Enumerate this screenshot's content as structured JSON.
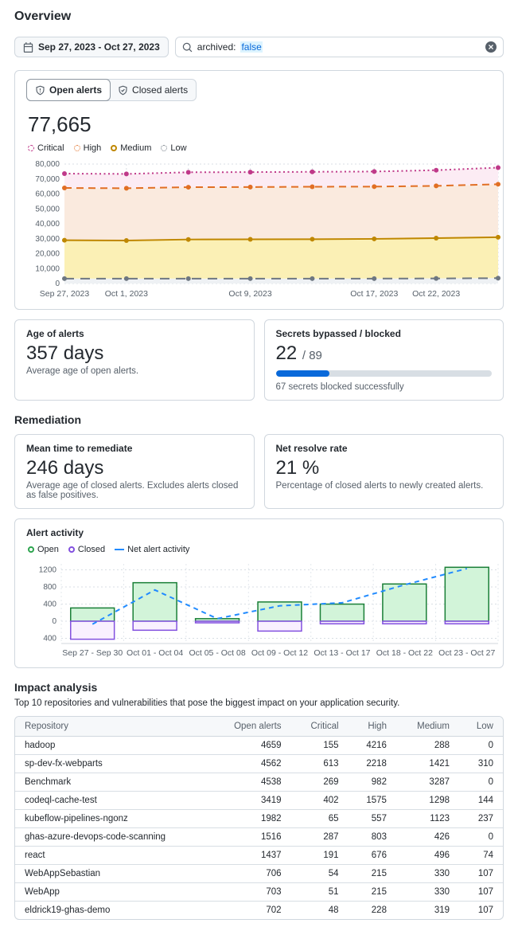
{
  "page": {
    "title": "Overview"
  },
  "colors": {
    "accent_blue": "#0969da",
    "critical": "#bf3989",
    "high": "#e16f24",
    "medium": "#bf8700",
    "low": "#6e7781",
    "open_green": "#2da44e",
    "closed_purple": "#8250df",
    "net_blue": "#218bff"
  },
  "toolbar": {
    "date_range": "Sep 27, 2023 - Oct 27, 2023",
    "search_prefix": "archived:",
    "search_value": "false"
  },
  "open_alerts_card": {
    "tabs": [
      {
        "label": "Open alerts"
      },
      {
        "label": "Closed alerts"
      }
    ],
    "total": "77,665",
    "legend": [
      {
        "label": "Critical",
        "color": "#bf3989"
      },
      {
        "label": "High",
        "color": "#e16f24"
      },
      {
        "label": "Medium",
        "color": "#bf8700"
      },
      {
        "label": "Low",
        "color": "#6e7781"
      }
    ]
  },
  "stat_cards": {
    "age": {
      "title": "Age of alerts",
      "value": "357 days",
      "desc": "Average age of open alerts."
    },
    "secrets": {
      "title": "Secrets bypassed / blocked",
      "value": "22",
      "total": "/ 89",
      "desc": "67 secrets blocked successfully",
      "percent": 24.7
    },
    "mttr": {
      "title": "Mean time to remediate",
      "value": "246 days",
      "desc": "Average age of closed alerts. Excludes alerts closed as false positives."
    },
    "resolve": {
      "title": "Net resolve rate",
      "value": "21 %",
      "desc": "Percentage of closed alerts to newly created alerts."
    }
  },
  "sections": {
    "remediation": "Remediation",
    "impact": "Impact analysis",
    "impact_sub": "Top 10 repositories and vulnerabilities that pose the biggest impact on your application security."
  },
  "activity_card": {
    "title": "Alert activity",
    "legend": [
      {
        "label": "Open"
      },
      {
        "label": "Closed"
      },
      {
        "label": "Net alert activity"
      }
    ]
  },
  "chart_data": [
    {
      "id": "severity-trend",
      "type": "line",
      "title": "Open alerts by severity over time",
      "x": [
        "Sep 27, 2023",
        "Oct 1, 2023",
        "Oct 5, 2023",
        "Oct 9, 2023",
        "Oct 13, 2023",
        "Oct 17, 2023",
        "Oct 22, 2023",
        "Oct 27, 2023"
      ],
      "x_ticks": [
        {
          "i": 0,
          "label": "Sep 27, 2023"
        },
        {
          "i": 1,
          "label": "Oct 1, 2023"
        },
        {
          "i": 3,
          "label": "Oct 9, 2023"
        },
        {
          "i": 5,
          "label": "Oct 17, 2023"
        },
        {
          "i": 6,
          "label": "Oct 22, 2023"
        }
      ],
      "ylim": [
        0,
        80000
      ],
      "ytick_step": 10000,
      "grid": true,
      "series": [
        {
          "name": "Critical",
          "values": [
            73600,
            73400,
            74500,
            74600,
            74800,
            75000,
            75900,
            77600
          ],
          "color": "#bf3989",
          "dash": "2 3.5",
          "fill": "#fcecf4"
        },
        {
          "name": "High",
          "values": [
            64000,
            63800,
            64500,
            64600,
            64800,
            64900,
            65400,
            66500
          ],
          "color": "#e16f24",
          "dash": "9 6",
          "fill": "#faeade"
        },
        {
          "name": "Medium",
          "values": [
            29000,
            28800,
            29500,
            29600,
            29700,
            29900,
            30400,
            31000
          ],
          "color": "#bf8700",
          "dash": "",
          "fill": "#fbf0b5"
        },
        {
          "name": "Low",
          "values": [
            3300,
            3300,
            3300,
            3300,
            3300,
            3300,
            3400,
            3600
          ],
          "color": "#6e7781",
          "dash": "12 8",
          "fill": "#eef1f4"
        }
      ]
    },
    {
      "id": "alert-activity",
      "type": "bar",
      "title": "Alert activity",
      "categories": [
        "Sep 27 - Sep 30",
        "Oct 01 - Oct 04",
        "Oct 05 - Oct 08",
        "Oct 09 - Oct 12",
        "Oct 13 - Oct 17",
        "Oct 18 - Oct 22",
        "Oct 23 - Oct 27"
      ],
      "series": [
        {
          "name": "Open",
          "values": [
            310,
            900,
            60,
            450,
            400,
            870,
            1260
          ],
          "color": "#1a7f37",
          "fill": "#d2f4d9"
        },
        {
          "name": "Closed",
          "values": [
            -420,
            -210,
            -30,
            -230,
            -60,
            -60,
            -60
          ],
          "color": "#8250df",
          "fill": "#f9f0ff"
        }
      ],
      "line_series": {
        "name": "Net alert activity",
        "values": [
          -70,
          730,
          60,
          360,
          430,
          850,
          1230
        ],
        "color": "#218bff",
        "dash": "6 5"
      },
      "yticks": [
        1200,
        800,
        400,
        0,
        -400
      ],
      "ylim": [
        -520,
        1340
      ],
      "grid": true
    }
  ],
  "impact_table": {
    "columns": [
      "Repository",
      "Open alerts",
      "Critical",
      "High",
      "Medium",
      "Low"
    ],
    "rows": [
      [
        "hadoop",
        "4659",
        "155",
        "4216",
        "288",
        "0"
      ],
      [
        "sp-dev-fx-webparts",
        "4562",
        "613",
        "2218",
        "1421",
        "310"
      ],
      [
        "Benchmark",
        "4538",
        "269",
        "982",
        "3287",
        "0"
      ],
      [
        "codeql-cache-test",
        "3419",
        "402",
        "1575",
        "1298",
        "144"
      ],
      [
        "kubeflow-pipelines-ngonz",
        "1982",
        "65",
        "557",
        "1123",
        "237"
      ],
      [
        "ghas-azure-devops-code-scanning",
        "1516",
        "287",
        "803",
        "426",
        "0"
      ],
      [
        "react",
        "1437",
        "191",
        "676",
        "496",
        "74"
      ],
      [
        "WebAppSebastian",
        "706",
        "54",
        "215",
        "330",
        "107"
      ],
      [
        "WebApp",
        "703",
        "51",
        "215",
        "330",
        "107"
      ],
      [
        "eldrick19-ghas-demo",
        "702",
        "48",
        "228",
        "319",
        "107"
      ]
    ]
  }
}
